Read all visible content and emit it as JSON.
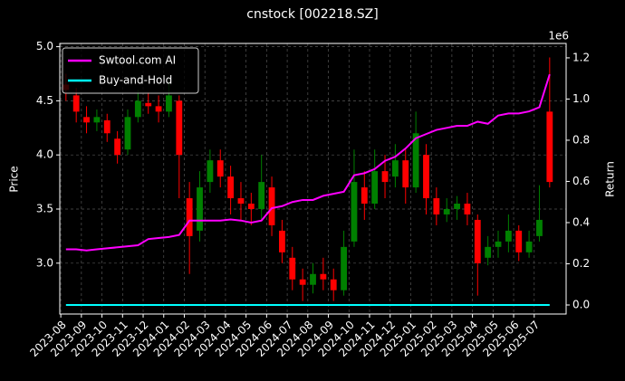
{
  "chart_data": {
    "type": "candlestick",
    "title": "cnstock [002218.SZ]",
    "ylabel": "Price",
    "y2label": "Return",
    "y2_offset_label": "1e6",
    "up_color": "#008000",
    "down_color": "#ff0000",
    "ohlc": {
      "open": [
        4.65,
        4.55,
        4.35,
        4.3,
        4.32,
        4.15,
        4.05,
        4.35,
        4.48,
        4.45,
        4.4,
        4.5,
        3.6,
        3.3,
        3.75,
        3.95,
        3.8,
        3.6,
        3.55,
        3.5,
        3.7,
        3.3,
        3.05,
        2.85,
        2.8,
        2.9,
        2.85,
        2.75,
        3.2,
        3.7,
        3.55,
        3.85,
        3.8,
        3.95,
        3.7,
        4.0,
        3.6,
        3.45,
        3.5,
        3.55,
        3.4,
        3.05,
        3.15,
        3.2,
        3.3,
        3.1,
        3.25,
        4.4
      ],
      "high": [
        4.75,
        4.62,
        4.45,
        4.42,
        4.38,
        4.22,
        4.42,
        4.6,
        4.58,
        4.55,
        4.7,
        4.55,
        3.75,
        3.85,
        4.05,
        4.05,
        3.9,
        3.75,
        3.65,
        4.0,
        3.8,
        3.4,
        3.15,
        2.95,
        3.0,
        3.05,
        2.95,
        3.3,
        4.05,
        3.85,
        4.05,
        4.0,
        4.1,
        4.05,
        4.4,
        4.1,
        3.7,
        3.6,
        3.62,
        3.65,
        3.45,
        3.25,
        3.3,
        3.45,
        3.35,
        3.3,
        3.72,
        4.9
      ],
      "low": [
        4.5,
        4.3,
        4.2,
        4.22,
        4.12,
        3.92,
        4.0,
        4.3,
        4.38,
        4.3,
        4.35,
        3.6,
        2.9,
        3.2,
        3.65,
        3.7,
        3.45,
        3.4,
        3.35,
        3.4,
        3.25,
        3.0,
        2.75,
        2.65,
        2.72,
        2.75,
        2.65,
        2.7,
        3.15,
        3.4,
        3.5,
        3.6,
        3.7,
        3.55,
        3.65,
        3.45,
        3.35,
        3.38,
        3.4,
        3.35,
        2.7,
        2.98,
        3.05,
        3.1,
        3.02,
        3.05,
        3.2,
        3.7
      ],
      "close": [
        4.6,
        4.4,
        4.3,
        4.35,
        4.2,
        4.0,
        4.35,
        4.5,
        4.45,
        4.4,
        4.55,
        4.0,
        3.25,
        3.7,
        3.95,
        3.8,
        3.6,
        3.55,
        3.5,
        3.75,
        3.35,
        3.1,
        2.85,
        2.8,
        2.9,
        2.85,
        2.75,
        3.15,
        3.75,
        3.55,
        3.85,
        3.75,
        3.95,
        3.7,
        4.2,
        3.6,
        3.45,
        3.5,
        3.55,
        3.45,
        3.0,
        3.15,
        3.2,
        3.3,
        3.1,
        3.2,
        3.4,
        3.75
      ]
    },
    "series": [
      {
        "name": "Swtool.com AI",
        "color": "#ff00ff",
        "axis": "y2",
        "values": [
          0.27,
          0.27,
          0.265,
          0.27,
          0.275,
          0.28,
          0.285,
          0.29,
          0.32,
          0.325,
          0.33,
          0.34,
          0.41,
          0.41,
          0.41,
          0.41,
          0.415,
          0.41,
          0.4,
          0.41,
          0.47,
          0.48,
          0.5,
          0.51,
          0.51,
          0.53,
          0.54,
          0.55,
          0.63,
          0.64,
          0.66,
          0.7,
          0.72,
          0.76,
          0.81,
          0.83,
          0.85,
          0.86,
          0.87,
          0.87,
          0.89,
          0.88,
          0.92,
          0.93,
          0.93,
          0.94,
          0.96,
          1.12
        ]
      },
      {
        "name": "Buy-and-Hold",
        "color": "#00ffff",
        "axis": "y2",
        "values": [
          0,
          0,
          0,
          0,
          0,
          0,
          0,
          0,
          0,
          0,
          0,
          0,
          0,
          0,
          0,
          0,
          0,
          0,
          0,
          0,
          0,
          0,
          0,
          0,
          0,
          0,
          0,
          0,
          0,
          0,
          0,
          0,
          0,
          0,
          0,
          0,
          0,
          0,
          0,
          0,
          0,
          0,
          0,
          0,
          0,
          0,
          0,
          0
        ]
      }
    ],
    "xlim": [
      -0.6,
      48.6
    ],
    "xticks": [
      {
        "value": -0.5,
        "label": "2023-08"
      },
      {
        "value": 1.5,
        "label": "2023-09"
      },
      {
        "value": 3.5,
        "label": "2023-10"
      },
      {
        "value": 5.5,
        "label": "2023-11"
      },
      {
        "value": 7.5,
        "label": "2023-12"
      },
      {
        "value": 9.5,
        "label": "2024-01"
      },
      {
        "value": 11.5,
        "label": "2024-02"
      },
      {
        "value": 13.5,
        "label": "2024-03"
      },
      {
        "value": 15.5,
        "label": "2024-04"
      },
      {
        "value": 17.5,
        "label": "2024-05"
      },
      {
        "value": 19.5,
        "label": "2024-06"
      },
      {
        "value": 21.5,
        "label": "2024-07"
      },
      {
        "value": 23.5,
        "label": "2024-08"
      },
      {
        "value": 25.5,
        "label": "2024-09"
      },
      {
        "value": 27.5,
        "label": "2024-10"
      },
      {
        "value": 29.5,
        "label": "2024-11"
      },
      {
        "value": 31.5,
        "label": "2024-12"
      },
      {
        "value": 33.5,
        "label": "2025-01"
      },
      {
        "value": 35.5,
        "label": "2025-02"
      },
      {
        "value": 37.5,
        "label": "2025-03"
      },
      {
        "value": 39.5,
        "label": "2025-04"
      },
      {
        "value": 41.5,
        "label": "2025-05"
      },
      {
        "value": 43.5,
        "label": "2025-06"
      },
      {
        "value": 45.5,
        "label": "2025-07"
      }
    ],
    "ylim": [
      2.53,
      5.03
    ],
    "yticks": [
      {
        "value": 3,
        "label": "3.0"
      },
      3.5,
      {
        "value": 4,
        "label": "4.0"
      },
      4.5,
      {
        "value": 5,
        "label": "5.0"
      }
    ],
    "y2lim": [
      -0.044,
      1.27
    ],
    "y2ticks": [
      {
        "value": 0,
        "label": "0.0"
      },
      0.2,
      0.4,
      0.6,
      0.8,
      {
        "value": 1,
        "label": "1.0"
      },
      1.2
    ],
    "grid": true,
    "legend": "upper left"
  }
}
